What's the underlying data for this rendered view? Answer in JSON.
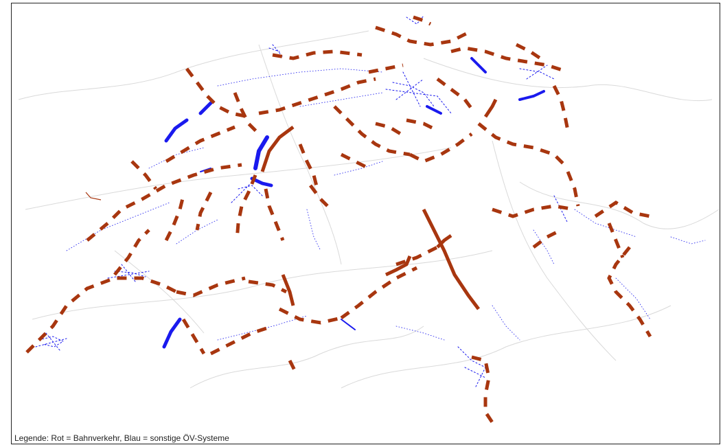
{
  "legend": {
    "text": "Legende: Rot = Bahnverkehr, Blau = sonstige ÖV-Systeme"
  },
  "colors": {
    "rail": "#a8360f",
    "other": "#1a1aee",
    "base": "#d6d6d6",
    "frame": "#222222"
  },
  "layers": [
    {
      "name": "Bahnverkehr",
      "color": "rail"
    },
    {
      "name": "sonstige ÖV-Systeme",
      "color": "other"
    }
  ]
}
